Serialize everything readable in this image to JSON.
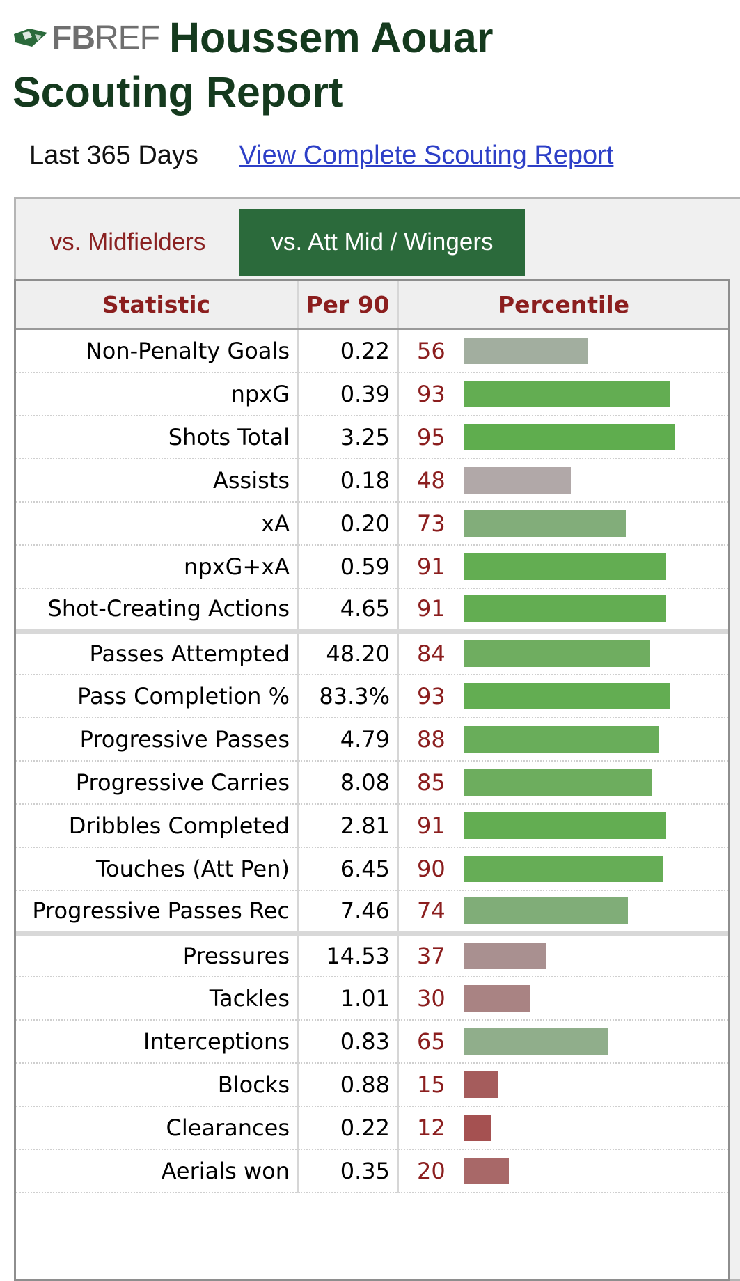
{
  "header": {
    "logo": {
      "fb": "FB",
      "ref": "REF"
    },
    "player_name": "Houssem Aouar",
    "report_title": "Scouting Report"
  },
  "subheader": {
    "period": "Last 365 Days",
    "link_text": "View Complete Scouting Report"
  },
  "tabs": [
    {
      "label": "vs. Midfielders",
      "active": false
    },
    {
      "label": "vs. Att Mid / Wingers",
      "active": true
    }
  ],
  "table": {
    "columns": [
      "Statistic",
      "Per 90",
      "Percentile"
    ],
    "groups": [
      [
        {
          "stat": "Non-Penalty Goals",
          "per90": "0.22",
          "pct": 56,
          "color": "#a2ae9f"
        },
        {
          "stat": "npxG",
          "per90": "0.39",
          "pct": 93,
          "color": "#63ad52"
        },
        {
          "stat": "Shots Total",
          "per90": "3.25",
          "pct": 95,
          "color": "#5fad4e"
        },
        {
          "stat": "Assists",
          "per90": "0.18",
          "pct": 48,
          "color": "#b1a8a8"
        },
        {
          "stat": "xA",
          "per90": "0.20",
          "pct": 73,
          "color": "#82ad7a"
        },
        {
          "stat": "npxG+xA",
          "per90": "0.59",
          "pct": 91,
          "color": "#63ad52"
        },
        {
          "stat": "Shot-Creating Actions",
          "per90": "4.65",
          "pct": 91,
          "color": "#63ad52"
        }
      ],
      [
        {
          "stat": "Passes Attempted",
          "per90": "48.20",
          "pct": 84,
          "color": "#6fad60"
        },
        {
          "stat": "Pass Completion %",
          "per90": "83.3%",
          "pct": 93,
          "color": "#63ad52"
        },
        {
          "stat": "Progressive Passes",
          "per90": "4.79",
          "pct": 88,
          "color": "#69ad5a"
        },
        {
          "stat": "Progressive Carries",
          "per90": "8.08",
          "pct": 85,
          "color": "#6dad5e"
        },
        {
          "stat": "Dribbles Completed",
          "per90": "2.81",
          "pct": 91,
          "color": "#63ad52"
        },
        {
          "stat": "Touches (Att Pen)",
          "per90": "6.45",
          "pct": 90,
          "color": "#66ad56"
        },
        {
          "stat": "Progressive Passes Rec",
          "per90": "7.46",
          "pct": 74,
          "color": "#80ad78"
        }
      ],
      [
        {
          "stat": "Pressures",
          "per90": "14.53",
          "pct": 37,
          "color": "#a99090"
        },
        {
          "stat": "Tackles",
          "per90": "1.01",
          "pct": 30,
          "color": "#a98383"
        },
        {
          "stat": "Interceptions",
          "per90": "0.83",
          "pct": 65,
          "color": "#90ae8b"
        },
        {
          "stat": "Blocks",
          "per90": "0.88",
          "pct": 15,
          "color": "#a55c5c"
        },
        {
          "stat": "Clearances",
          "per90": "0.22",
          "pct": 12,
          "color": "#a55151"
        },
        {
          "stat": "Aerials won",
          "per90": "0.35",
          "pct": 20,
          "color": "#a86868"
        }
      ]
    ]
  }
}
